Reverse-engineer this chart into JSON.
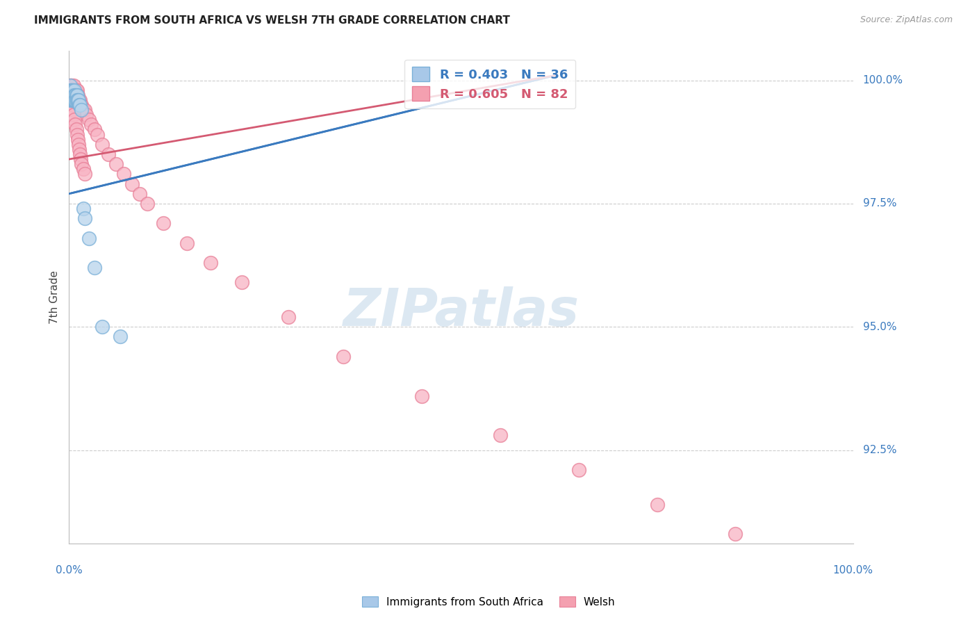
{
  "title": "IMMIGRANTS FROM SOUTH AFRICA VS WELSH 7TH GRADE CORRELATION CHART",
  "source": "Source: ZipAtlas.com",
  "ylabel": "7th Grade",
  "ytick_labels": [
    "100.0%",
    "97.5%",
    "95.0%",
    "92.5%"
  ],
  "ytick_values": [
    1.0,
    0.975,
    0.95,
    0.925
  ],
  "xlim": [
    0.0,
    1.0
  ],
  "ylim": [
    0.906,
    1.006
  ],
  "legend1_label": "R = 0.403   N = 36",
  "legend2_label": "R = 0.605   N = 82",
  "legend_color1": "#a8c8e8",
  "legend_color2": "#f4a0b0",
  "trendline1_color": "#3a7abf",
  "trendline2_color": "#d45a72",
  "scatter1_facecolor": "#b8d4ec",
  "scatter1_edgecolor": "#7ab0d8",
  "scatter2_facecolor": "#f8b4c4",
  "scatter2_edgecolor": "#e88098",
  "background_color": "#ffffff",
  "watermark": "ZIPatlas",
  "south_africa_x": [
    0.001,
    0.001,
    0.002,
    0.002,
    0.002,
    0.003,
    0.003,
    0.003,
    0.004,
    0.004,
    0.004,
    0.005,
    0.005,
    0.005,
    0.006,
    0.006,
    0.007,
    0.007,
    0.007,
    0.008,
    0.008,
    0.009,
    0.009,
    0.01,
    0.01,
    0.011,
    0.012,
    0.013,
    0.014,
    0.016,
    0.018,
    0.02,
    0.025,
    0.032,
    0.042,
    0.065
  ],
  "south_africa_y": [
    0.999,
    0.998,
    0.998,
    0.997,
    0.996,
    0.998,
    0.997,
    0.996,
    0.998,
    0.997,
    0.996,
    0.998,
    0.997,
    0.996,
    0.997,
    0.996,
    0.998,
    0.997,
    0.996,
    0.997,
    0.996,
    0.997,
    0.996,
    0.997,
    0.996,
    0.996,
    0.996,
    0.995,
    0.995,
    0.994,
    0.974,
    0.972,
    0.968,
    0.962,
    0.95,
    0.948
  ],
  "welsh_x": [
    0.001,
    0.001,
    0.001,
    0.002,
    0.002,
    0.002,
    0.002,
    0.003,
    0.003,
    0.003,
    0.003,
    0.004,
    0.004,
    0.004,
    0.005,
    0.005,
    0.005,
    0.006,
    0.006,
    0.006,
    0.006,
    0.007,
    0.007,
    0.007,
    0.008,
    0.008,
    0.008,
    0.009,
    0.009,
    0.009,
    0.01,
    0.01,
    0.011,
    0.011,
    0.012,
    0.013,
    0.014,
    0.015,
    0.016,
    0.018,
    0.02,
    0.022,
    0.025,
    0.028,
    0.032,
    0.036,
    0.042,
    0.05,
    0.06,
    0.07,
    0.08,
    0.09,
    0.1,
    0.12,
    0.15,
    0.18,
    0.22,
    0.28,
    0.35,
    0.45,
    0.55,
    0.65,
    0.75,
    0.85,
    0.001,
    0.002,
    0.003,
    0.004,
    0.005,
    0.006,
    0.007,
    0.008,
    0.009,
    0.01,
    0.011,
    0.012,
    0.013,
    0.014,
    0.015,
    0.016,
    0.018,
    0.02
  ],
  "welsh_y": [
    0.999,
    0.998,
    0.997,
    0.999,
    0.998,
    0.997,
    0.996,
    0.999,
    0.998,
    0.997,
    0.996,
    0.998,
    0.997,
    0.996,
    0.998,
    0.997,
    0.996,
    0.999,
    0.998,
    0.997,
    0.996,
    0.998,
    0.997,
    0.996,
    0.998,
    0.997,
    0.996,
    0.998,
    0.997,
    0.996,
    0.998,
    0.997,
    0.997,
    0.996,
    0.996,
    0.996,
    0.996,
    0.995,
    0.995,
    0.994,
    0.994,
    0.993,
    0.992,
    0.991,
    0.99,
    0.989,
    0.987,
    0.985,
    0.983,
    0.981,
    0.979,
    0.977,
    0.975,
    0.971,
    0.967,
    0.963,
    0.959,
    0.952,
    0.944,
    0.936,
    0.928,
    0.921,
    0.914,
    0.908,
    0.998,
    0.997,
    0.996,
    0.995,
    0.994,
    0.993,
    0.992,
    0.991,
    0.99,
    0.989,
    0.988,
    0.987,
    0.986,
    0.985,
    0.984,
    0.983,
    0.982,
    0.981
  ],
  "trendline1_x_start": 0.0,
  "trendline1_y_start": 0.977,
  "trendline1_x_end": 0.62,
  "trendline1_y_end": 1.001,
  "trendline2_x_start": 0.0,
  "trendline2_y_start": 0.984,
  "trendline2_x_end": 0.62,
  "trendline2_y_end": 1.001
}
